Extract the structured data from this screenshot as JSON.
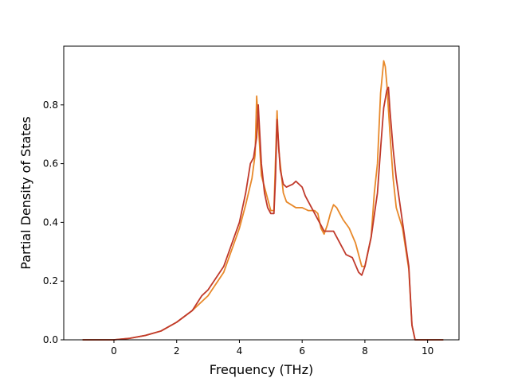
{
  "chart_data": {
    "type": "line",
    "title": "",
    "xlabel": "Frequency (THz)",
    "ylabel": "Partial Density of States",
    "xlim": [
      -1.6,
      11.0
    ],
    "ylim": [
      0.0,
      1.0
    ],
    "xticks": [
      0,
      2,
      4,
      6,
      8,
      10
    ],
    "yticks": [
      0.0,
      0.2,
      0.4,
      0.6,
      0.8
    ],
    "xtick_labels": [
      "0",
      "2",
      "4",
      "6",
      "8",
      "10"
    ],
    "ytick_labels": [
      "0.0",
      "0.2",
      "0.4",
      "0.6",
      "0.8"
    ],
    "grid": false,
    "legend": "none",
    "series": [
      {
        "color": "#e8892a",
        "x": [
          -1.0,
          0.0,
          0.5,
          1.0,
          1.5,
          2.0,
          2.5,
          3.0,
          3.5,
          4.0,
          4.2,
          4.4,
          4.5,
          4.55,
          4.7,
          4.8,
          5.0,
          5.1,
          5.2,
          5.25,
          5.4,
          5.5,
          5.8,
          6.0,
          6.2,
          6.4,
          6.5,
          6.6,
          6.7,
          6.8,
          6.9,
          7.0,
          7.1,
          7.3,
          7.5,
          7.7,
          7.9,
          8.0,
          8.2,
          8.3,
          8.4,
          8.5,
          8.6,
          8.65,
          8.7,
          8.8,
          8.9,
          9.0,
          9.2,
          9.4,
          9.5,
          9.6,
          10.0,
          10.5
        ],
        "y": [
          0.0,
          0.0,
          0.005,
          0.015,
          0.03,
          0.06,
          0.1,
          0.15,
          0.23,
          0.38,
          0.46,
          0.55,
          0.63,
          0.83,
          0.56,
          0.52,
          0.44,
          0.44,
          0.78,
          0.65,
          0.5,
          0.47,
          0.45,
          0.45,
          0.44,
          0.44,
          0.43,
          0.38,
          0.36,
          0.39,
          0.43,
          0.46,
          0.45,
          0.41,
          0.38,
          0.33,
          0.25,
          0.25,
          0.35,
          0.5,
          0.6,
          0.84,
          0.95,
          0.93,
          0.87,
          0.7,
          0.55,
          0.45,
          0.38,
          0.24,
          0.05,
          0.0,
          0.0,
          0.0
        ]
      },
      {
        "color": "#c0392b",
        "x": [
          -1.0,
          0.0,
          0.5,
          1.0,
          1.5,
          2.0,
          2.5,
          2.8,
          3.0,
          3.5,
          4.0,
          4.2,
          4.35,
          4.45,
          4.55,
          4.6,
          4.7,
          4.8,
          4.9,
          5.0,
          5.1,
          5.15,
          5.2,
          5.3,
          5.4,
          5.5,
          5.7,
          5.8,
          6.0,
          6.1,
          6.3,
          6.5,
          6.7,
          7.0,
          7.2,
          7.4,
          7.6,
          7.8,
          7.9,
          8.0,
          8.2,
          8.4,
          8.5,
          8.6,
          8.7,
          8.75,
          8.8,
          8.9,
          9.0,
          9.2,
          9.4,
          9.5,
          9.6,
          10.0,
          10.5
        ],
        "y": [
          0.0,
          0.0,
          0.005,
          0.015,
          0.03,
          0.06,
          0.1,
          0.15,
          0.17,
          0.25,
          0.4,
          0.5,
          0.6,
          0.62,
          0.69,
          0.8,
          0.6,
          0.5,
          0.45,
          0.43,
          0.43,
          0.55,
          0.75,
          0.58,
          0.53,
          0.52,
          0.53,
          0.54,
          0.52,
          0.49,
          0.45,
          0.41,
          0.37,
          0.37,
          0.33,
          0.29,
          0.28,
          0.23,
          0.22,
          0.25,
          0.35,
          0.5,
          0.65,
          0.79,
          0.85,
          0.86,
          0.78,
          0.65,
          0.55,
          0.4,
          0.25,
          0.05,
          0.0,
          0.0,
          0.0
        ]
      }
    ]
  }
}
